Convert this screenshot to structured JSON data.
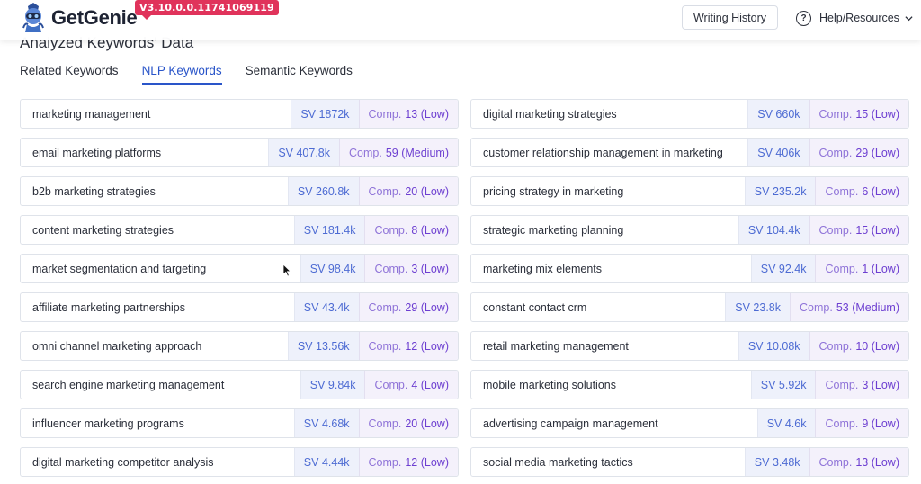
{
  "header": {
    "brand": "GetGenie",
    "version": "V3.10.0.0.11741069119",
    "writing_history": "Writing History",
    "help": "Help/Resources"
  },
  "section": {
    "title": "Analyzed Keywords' Data"
  },
  "tabs": [
    {
      "label": "Related Keywords",
      "active": false
    },
    {
      "label": "NLP Keywords",
      "active": true
    },
    {
      "label": "Semantic Keywords",
      "active": false
    }
  ],
  "comp_prefix": "Comp.",
  "keywords": [
    {
      "keyword": "marketing management",
      "sv": "SV 1872k",
      "comp": "13 (Low)"
    },
    {
      "keyword": "digital marketing strategies",
      "sv": "SV 660k",
      "comp": "15 (Low)"
    },
    {
      "keyword": "email marketing platforms",
      "sv": "SV 407.8k",
      "comp": "59 (Medium)"
    },
    {
      "keyword": "customer relationship management in marketing",
      "sv": "SV 406k",
      "comp": "29 (Low)"
    },
    {
      "keyword": "b2b marketing strategies",
      "sv": "SV 260.8k",
      "comp": "20 (Low)"
    },
    {
      "keyword": "pricing strategy in marketing",
      "sv": "SV 235.2k",
      "comp": "6 (Low)"
    },
    {
      "keyword": "content marketing strategies",
      "sv": "SV 181.4k",
      "comp": "8 (Low)"
    },
    {
      "keyword": "strategic marketing planning",
      "sv": "SV 104.4k",
      "comp": "15 (Low)"
    },
    {
      "keyword": "market segmentation and targeting",
      "sv": "SV 98.4k",
      "comp": "3 (Low)"
    },
    {
      "keyword": "marketing mix elements",
      "sv": "SV 92.4k",
      "comp": "1 (Low)"
    },
    {
      "keyword": "affiliate marketing partnerships",
      "sv": "SV 43.4k",
      "comp": "29 (Low)"
    },
    {
      "keyword": "constant contact crm",
      "sv": "SV 23.8k",
      "comp": "53 (Medium)"
    },
    {
      "keyword": "omni channel marketing approach",
      "sv": "SV 13.56k",
      "comp": "12 (Low)"
    },
    {
      "keyword": "retail marketing management",
      "sv": "SV 10.08k",
      "comp": "10 (Low)"
    },
    {
      "keyword": "search engine marketing management",
      "sv": "SV 9.84k",
      "comp": "4 (Low)"
    },
    {
      "keyword": "mobile marketing solutions",
      "sv": "SV 5.92k",
      "comp": "3 (Low)"
    },
    {
      "keyword": "influencer marketing programs",
      "sv": "SV 4.68k",
      "comp": "20 (Low)"
    },
    {
      "keyword": "advertising campaign management",
      "sv": "SV 4.6k",
      "comp": "9 (Low)"
    },
    {
      "keyword": "digital marketing competitor analysis",
      "sv": "SV 4.44k",
      "comp": "12 (Low)"
    },
    {
      "keyword": "social media marketing tactics",
      "sv": "SV 3.48k",
      "comp": "13 (Low)"
    }
  ],
  "colors": {
    "accent": "#2a55c9",
    "badge": "#e0335b",
    "sv_text": "#4d6bd3",
    "comp_text": "#6d3fd1"
  }
}
